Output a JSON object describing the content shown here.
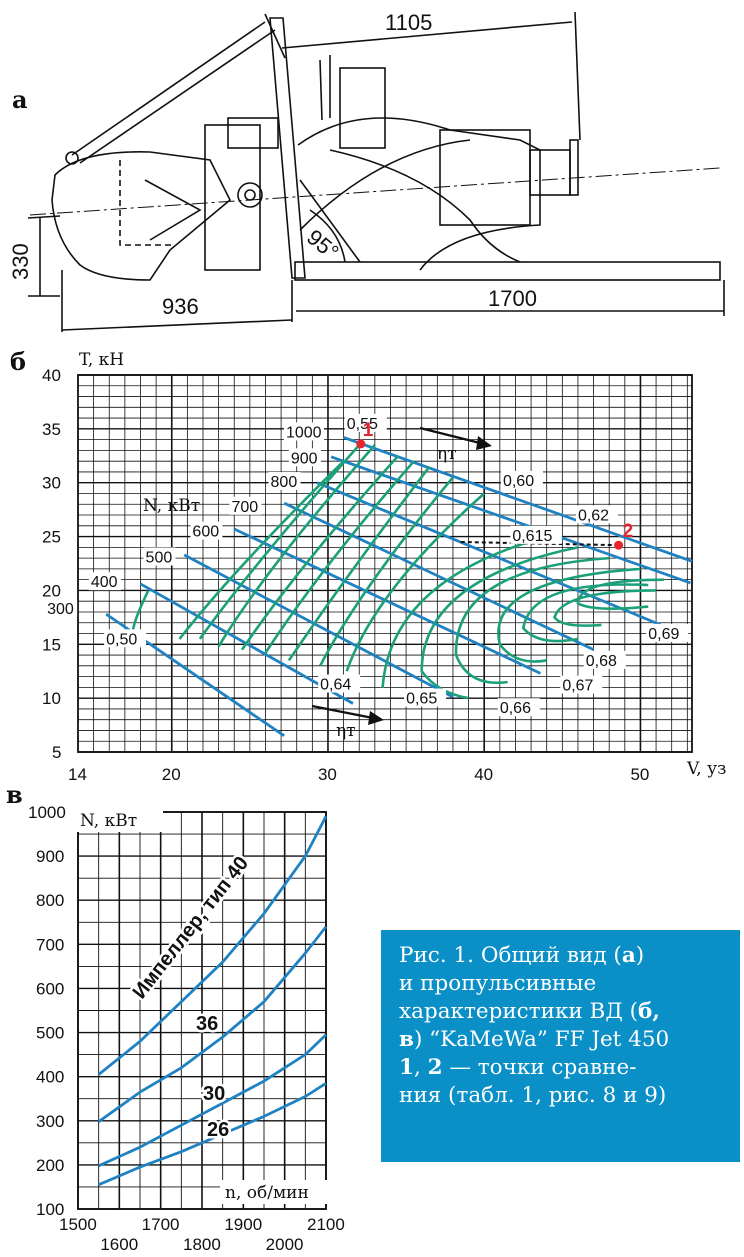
{
  "panel_labels": {
    "a": "а",
    "b": "б",
    "v": "в"
  },
  "drawing_a": {
    "dims": {
      "top": "1105",
      "left_height": "330",
      "bottom_left": "936",
      "bottom_right": "1700",
      "angle": "95°"
    }
  },
  "chart_b": {
    "x_label": "V, уз",
    "y_label": "T, кН",
    "power_label": "N, кВт",
    "eta_label": "ηт",
    "x_ticks": [
      "14",
      "20",
      "30",
      "40",
      "50"
    ],
    "y_ticks": [
      "5",
      "10",
      "15",
      "20",
      "25",
      "30",
      "35",
      "40"
    ],
    "power_lines": [
      "300",
      "400",
      "500",
      "600",
      "700",
      "800",
      "900",
      "1000"
    ],
    "eff_labels": [
      "0,50",
      "0,55",
      "0,60",
      "0,62",
      "0,615",
      "0,64",
      "0,65",
      "0,66",
      "0,67",
      "0,68",
      "0,69"
    ],
    "points": [
      {
        "label": "1",
        "V": 32.1,
        "T": 33.6
      },
      {
        "label": "2",
        "V": 48.6,
        "T": 24.2
      }
    ]
  },
  "chart_v": {
    "x_label": "n, об/мин",
    "y_label": "N, кВт",
    "x_ticks_top": [
      "1500",
      "1700",
      "1900",
      "2100"
    ],
    "x_ticks_bottom": [
      "1600",
      "1800",
      "2000"
    ],
    "y_ticks": [
      "100",
      "200",
      "300",
      "400",
      "500",
      "600",
      "700",
      "800",
      "900",
      "1000"
    ],
    "series": [
      {
        "name": "Импеллер, тип 40",
        "x": [
          1550,
          1650,
          1750,
          1850,
          1950,
          2050,
          2100
        ],
        "y": [
          405,
          480,
          570,
          660,
          770,
          900,
          990
        ]
      },
      {
        "name": "36",
        "x": [
          1550,
          1650,
          1750,
          1850,
          1950,
          2050,
          2100
        ],
        "y": [
          298,
          365,
          420,
          490,
          570,
          680,
          740
        ]
      },
      {
        "name": "30",
        "x": [
          1550,
          1650,
          1750,
          1850,
          1950,
          2050,
          2100
        ],
        "y": [
          198,
          240,
          290,
          340,
          390,
          450,
          495
        ]
      },
      {
        "name": "26",
        "x": [
          1550,
          1650,
          1750,
          1850,
          1950,
          2050,
          2100
        ],
        "y": [
          155,
          195,
          230,
          270,
          310,
          355,
          385
        ]
      }
    ]
  },
  "caption": {
    "line1": "Рис. 1. Общий вид (",
    "b1": "а",
    "line1_end": ")",
    "line2": "и пропульсивные",
    "line3": "характеристики ВД (",
    "b2": "б,",
    "b3": "в",
    "line4_end": ") “KaMeWa” FF Jet 450",
    "b4": "1",
    "sep": ", ",
    "b5": "2",
    "line5_end": " — точки сравне-",
    "line6": "ния (табл. 1, рис. 8 и 9)"
  },
  "colors": {
    "curves": "#1f82c2",
    "efficiency": "#1ca07a",
    "points": "#e4262d",
    "caption_bg": "#0a8fc6"
  }
}
